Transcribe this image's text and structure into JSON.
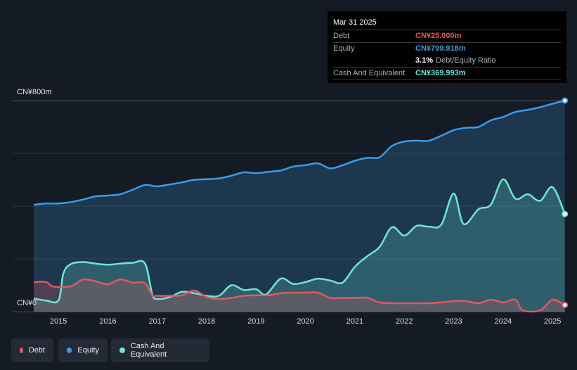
{
  "tooltip": {
    "date": "Mar 31 2025",
    "debt_label": "Debt",
    "debt_value": "CN¥25.000m",
    "equity_label": "Equity",
    "equity_value": "CN¥799.918m",
    "ratio_value": "3.1%",
    "ratio_label": "Debt/Equity Ratio",
    "cash_label": "Cash And Equivalent",
    "cash_value": "CN¥369.993m"
  },
  "colors": {
    "debt": "#e05a5f",
    "equity": "#3a9be8",
    "cash": "#6fe6d3",
    "equity_value_text": "#3a9be8",
    "debt_value_text": "#e05a5f",
    "cash_value_text": "#6fe6d3"
  },
  "legend": [
    {
      "label": "Debt",
      "color": "#e05a5f"
    },
    {
      "label": "Equity",
      "color": "#3a9be8"
    },
    {
      "label": "Cash And Equivalent",
      "color": "#6fe6d3"
    }
  ],
  "chart_data": {
    "type": "area",
    "y_top_label": "CN¥800m",
    "y_bottom_label": "CN¥0",
    "ylim": [
      0,
      800
    ],
    "xlim": [
      2014.5,
      2025.25
    ],
    "x_ticks": [
      "2015",
      "2016",
      "2017",
      "2018",
      "2019",
      "2020",
      "2021",
      "2022",
      "2023",
      "2024",
      "2025"
    ],
    "grid": true,
    "legend_position": "bottom-left",
    "series": [
      {
        "name": "Equity",
        "points": [
          [
            2014.5,
            405
          ],
          [
            2014.75,
            410
          ],
          [
            2015.0,
            410
          ],
          [
            2015.25,
            415
          ],
          [
            2015.5,
            425
          ],
          [
            2015.75,
            437
          ],
          [
            2016.0,
            440
          ],
          [
            2016.25,
            445
          ],
          [
            2016.5,
            462
          ],
          [
            2016.75,
            480
          ],
          [
            2017.0,
            475
          ],
          [
            2017.25,
            482
          ],
          [
            2017.5,
            490
          ],
          [
            2017.75,
            500
          ],
          [
            2018.0,
            502
          ],
          [
            2018.25,
            505
          ],
          [
            2018.5,
            515
          ],
          [
            2018.75,
            528
          ],
          [
            2019.0,
            525
          ],
          [
            2019.25,
            530
          ],
          [
            2019.5,
            535
          ],
          [
            2019.75,
            550
          ],
          [
            2020.0,
            555
          ],
          [
            2020.25,
            562
          ],
          [
            2020.5,
            543
          ],
          [
            2020.75,
            555
          ],
          [
            2021.0,
            572
          ],
          [
            2021.25,
            583
          ],
          [
            2021.5,
            585
          ],
          [
            2021.75,
            628
          ],
          [
            2022.0,
            645
          ],
          [
            2022.25,
            648
          ],
          [
            2022.5,
            648
          ],
          [
            2022.75,
            667
          ],
          [
            2023.0,
            688
          ],
          [
            2023.25,
            697
          ],
          [
            2023.5,
            700
          ],
          [
            2023.75,
            725
          ],
          [
            2024.0,
            738
          ],
          [
            2024.25,
            757
          ],
          [
            2024.5,
            765
          ],
          [
            2024.75,
            775
          ],
          [
            2025.0,
            788
          ],
          [
            2025.25,
            800
          ]
        ]
      },
      {
        "name": "Cash And Equivalent",
        "points": [
          [
            2014.5,
            50
          ],
          [
            2014.75,
            42
          ],
          [
            2015.0,
            43
          ],
          [
            2015.1,
            145
          ],
          [
            2015.25,
            180
          ],
          [
            2015.5,
            188
          ],
          [
            2015.75,
            182
          ],
          [
            2016.0,
            178
          ],
          [
            2016.25,
            182
          ],
          [
            2016.5,
            185
          ],
          [
            2016.75,
            183
          ],
          [
            2016.9,
            65
          ],
          [
            2017.0,
            48
          ],
          [
            2017.25,
            55
          ],
          [
            2017.5,
            75
          ],
          [
            2017.75,
            70
          ],
          [
            2018.0,
            60
          ],
          [
            2018.25,
            60
          ],
          [
            2018.5,
            100
          ],
          [
            2018.75,
            82
          ],
          [
            2019.0,
            85
          ],
          [
            2019.2,
            65
          ],
          [
            2019.5,
            125
          ],
          [
            2019.75,
            105
          ],
          [
            2020.0,
            112
          ],
          [
            2020.25,
            125
          ],
          [
            2020.5,
            118
          ],
          [
            2020.75,
            110
          ],
          [
            2021.0,
            170
          ],
          [
            2021.25,
            210
          ],
          [
            2021.5,
            245
          ],
          [
            2021.75,
            320
          ],
          [
            2022.0,
            288
          ],
          [
            2022.25,
            325
          ],
          [
            2022.5,
            322
          ],
          [
            2022.75,
            330
          ],
          [
            2023.0,
            448
          ],
          [
            2023.2,
            332
          ],
          [
            2023.5,
            388
          ],
          [
            2023.75,
            405
          ],
          [
            2024.0,
            502
          ],
          [
            2024.25,
            428
          ],
          [
            2024.5,
            445
          ],
          [
            2024.75,
            420
          ],
          [
            2025.0,
            472
          ],
          [
            2025.25,
            370
          ]
        ]
      },
      {
        "name": "Debt",
        "points": [
          [
            2014.5,
            112
          ],
          [
            2014.75,
            112
          ],
          [
            2014.9,
            95
          ],
          [
            2015.25,
            96
          ],
          [
            2015.5,
            122
          ],
          [
            2015.75,
            115
          ],
          [
            2016.0,
            104
          ],
          [
            2016.25,
            122
          ],
          [
            2016.5,
            110
          ],
          [
            2016.75,
            108
          ],
          [
            2016.9,
            62
          ],
          [
            2017.0,
            60
          ],
          [
            2017.25,
            60
          ],
          [
            2017.5,
            62
          ],
          [
            2017.75,
            80
          ],
          [
            2018.0,
            55
          ],
          [
            2018.25,
            48
          ],
          [
            2018.5,
            52
          ],
          [
            2018.75,
            60
          ],
          [
            2019.0,
            62
          ],
          [
            2019.25,
            62
          ],
          [
            2019.5,
            70
          ],
          [
            2019.75,
            72
          ],
          [
            2020.0,
            72
          ],
          [
            2020.25,
            72
          ],
          [
            2020.5,
            52
          ],
          [
            2020.75,
            52
          ],
          [
            2021.0,
            52
          ],
          [
            2021.25,
            52
          ],
          [
            2021.5,
            35
          ],
          [
            2021.75,
            32
          ],
          [
            2022.0,
            32
          ],
          [
            2022.25,
            32
          ],
          [
            2022.5,
            32
          ],
          [
            2022.75,
            35
          ],
          [
            2023.0,
            40
          ],
          [
            2023.25,
            40
          ],
          [
            2023.5,
            32
          ],
          [
            2023.75,
            45
          ],
          [
            2024.0,
            35
          ],
          [
            2024.25,
            45
          ],
          [
            2024.4,
            5
          ],
          [
            2024.75,
            5
          ],
          [
            2025.0,
            45
          ],
          [
            2025.25,
            25
          ]
        ]
      }
    ]
  }
}
